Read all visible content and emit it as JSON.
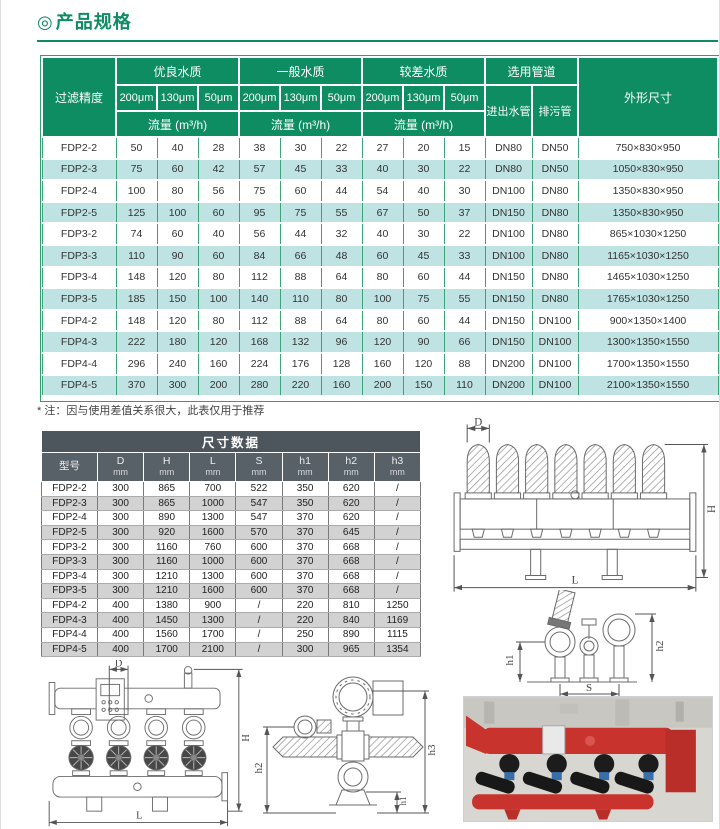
{
  "page": {
    "bullet": "◎",
    "title": "产品规格"
  },
  "spec_table": {
    "filter_precision": "过滤精度",
    "quality_groups": [
      {
        "label": "优良水质"
      },
      {
        "label": "一般水质"
      },
      {
        "label": "较差水质"
      }
    ],
    "microns": [
      "200μm",
      "130μm",
      "50μm"
    ],
    "flow_label": "流量 (m³/h)",
    "pipes_label": "选用管道",
    "inlet_label": "进出水管",
    "drain_label": "排污管",
    "size_label": "外形尺寸",
    "rows": [
      [
        "FDP2-2",
        "50",
        "40",
        "28",
        "38",
        "30",
        "22",
        "27",
        "20",
        "15",
        "DN80",
        "DN50",
        "750×830×950"
      ],
      [
        "FDP2-3",
        "75",
        "60",
        "42",
        "57",
        "45",
        "33",
        "40",
        "30",
        "22",
        "DN80",
        "DN50",
        "1050×830×950"
      ],
      [
        "FDP2-4",
        "100",
        "80",
        "56",
        "75",
        "60",
        "44",
        "54",
        "40",
        "30",
        "DN100",
        "DN80",
        "1350×830×950"
      ],
      [
        "FDP2-5",
        "125",
        "100",
        "60",
        "95",
        "75",
        "55",
        "67",
        "50",
        "37",
        "DN150",
        "DN80",
        "1350×830×950"
      ],
      [
        "FDP3-2",
        "74",
        "60",
        "40",
        "56",
        "44",
        "32",
        "40",
        "30",
        "22",
        "DN100",
        "DN80",
        "865×1030×1250"
      ],
      [
        "FDP3-3",
        "110",
        "90",
        "60",
        "84",
        "66",
        "48",
        "60",
        "45",
        "33",
        "DN100",
        "DN80",
        "1165×1030×1250"
      ],
      [
        "FDP3-4",
        "148",
        "120",
        "80",
        "112",
        "88",
        "64",
        "80",
        "60",
        "44",
        "DN150",
        "DN80",
        "1465×1030×1250"
      ],
      [
        "FDP3-5",
        "185",
        "150",
        "100",
        "140",
        "110",
        "80",
        "100",
        "75",
        "55",
        "DN150",
        "DN80",
        "1765×1030×1250"
      ],
      [
        "FDP4-2",
        "148",
        "120",
        "80",
        "112",
        "88",
        "64",
        "80",
        "60",
        "44",
        "DN150",
        "DN100",
        "900×1350×1400"
      ],
      [
        "FDP4-3",
        "222",
        "180",
        "120",
        "168",
        "132",
        "96",
        "120",
        "90",
        "66",
        "DN150",
        "DN100",
        "1300×1350×1550"
      ],
      [
        "FDP4-4",
        "296",
        "240",
        "160",
        "224",
        "176",
        "128",
        "160",
        "120",
        "88",
        "DN200",
        "DN100",
        "1700×1350×1550"
      ],
      [
        "FDP4-5",
        "370",
        "300",
        "200",
        "280",
        "220",
        "160",
        "200",
        "150",
        "110",
        "DN200",
        "DN100",
        "2100×1350×1550"
      ]
    ]
  },
  "note": "* 注：因与使用差值关系很大，此表仅用于推荐",
  "dim_table": {
    "title": "尺寸数据",
    "model_header": "型号",
    "unit": "mm",
    "dim_headers": [
      "D",
      "H",
      "L",
      "S",
      "h1",
      "h2",
      "h3"
    ],
    "rows": [
      [
        "FDP2-2",
        "300",
        "865",
        "700",
        "522",
        "350",
        "620",
        "/"
      ],
      [
        "FDP2-3",
        "300",
        "865",
        "1000",
        "547",
        "350",
        "620",
        "/"
      ],
      [
        "FDP2-4",
        "300",
        "890",
        "1300",
        "547",
        "370",
        "620",
        "/"
      ],
      [
        "FDP2-5",
        "300",
        "920",
        "1600",
        "570",
        "370",
        "645",
        "/"
      ],
      [
        "FDP3-2",
        "300",
        "1160",
        "760",
        "600",
        "370",
        "668",
        "/"
      ],
      [
        "FDP3-3",
        "300",
        "1160",
        "1000",
        "600",
        "370",
        "668",
        "/"
      ],
      [
        "FDP3-4",
        "300",
        "1210",
        "1300",
        "600",
        "370",
        "668",
        "/"
      ],
      [
        "FDP3-5",
        "300",
        "1210",
        "1600",
        "600",
        "370",
        "668",
        "/"
      ],
      [
        "FDP4-2",
        "400",
        "1380",
        "900",
        "/",
        "220",
        "810",
        "1250"
      ],
      [
        "FDP4-3",
        "400",
        "1450",
        "1300",
        "/",
        "220",
        "840",
        "1169"
      ],
      [
        "FDP4-4",
        "400",
        "1560",
        "1700",
        "/",
        "250",
        "890",
        "1115"
      ],
      [
        "FDP4-5",
        "400",
        "1700",
        "2100",
        "/",
        "300",
        "965",
        "1354"
      ]
    ]
  },
  "drawings": {
    "front7": {
      "d": "D",
      "h": "H",
      "l": "L"
    },
    "side1": {
      "h1": "h1",
      "h2": "h2",
      "s": "S"
    },
    "front4": {
      "d": "D",
      "h": "H",
      "l": "L"
    },
    "side2": {
      "h1": "h1",
      "h2": "h2",
      "h3": "h3"
    }
  },
  "colors": {
    "green": "#0E8C62",
    "light_teal": "#BFE2E3",
    "slate": "#4D555D",
    "row_gray": "#D2D2D2"
  }
}
